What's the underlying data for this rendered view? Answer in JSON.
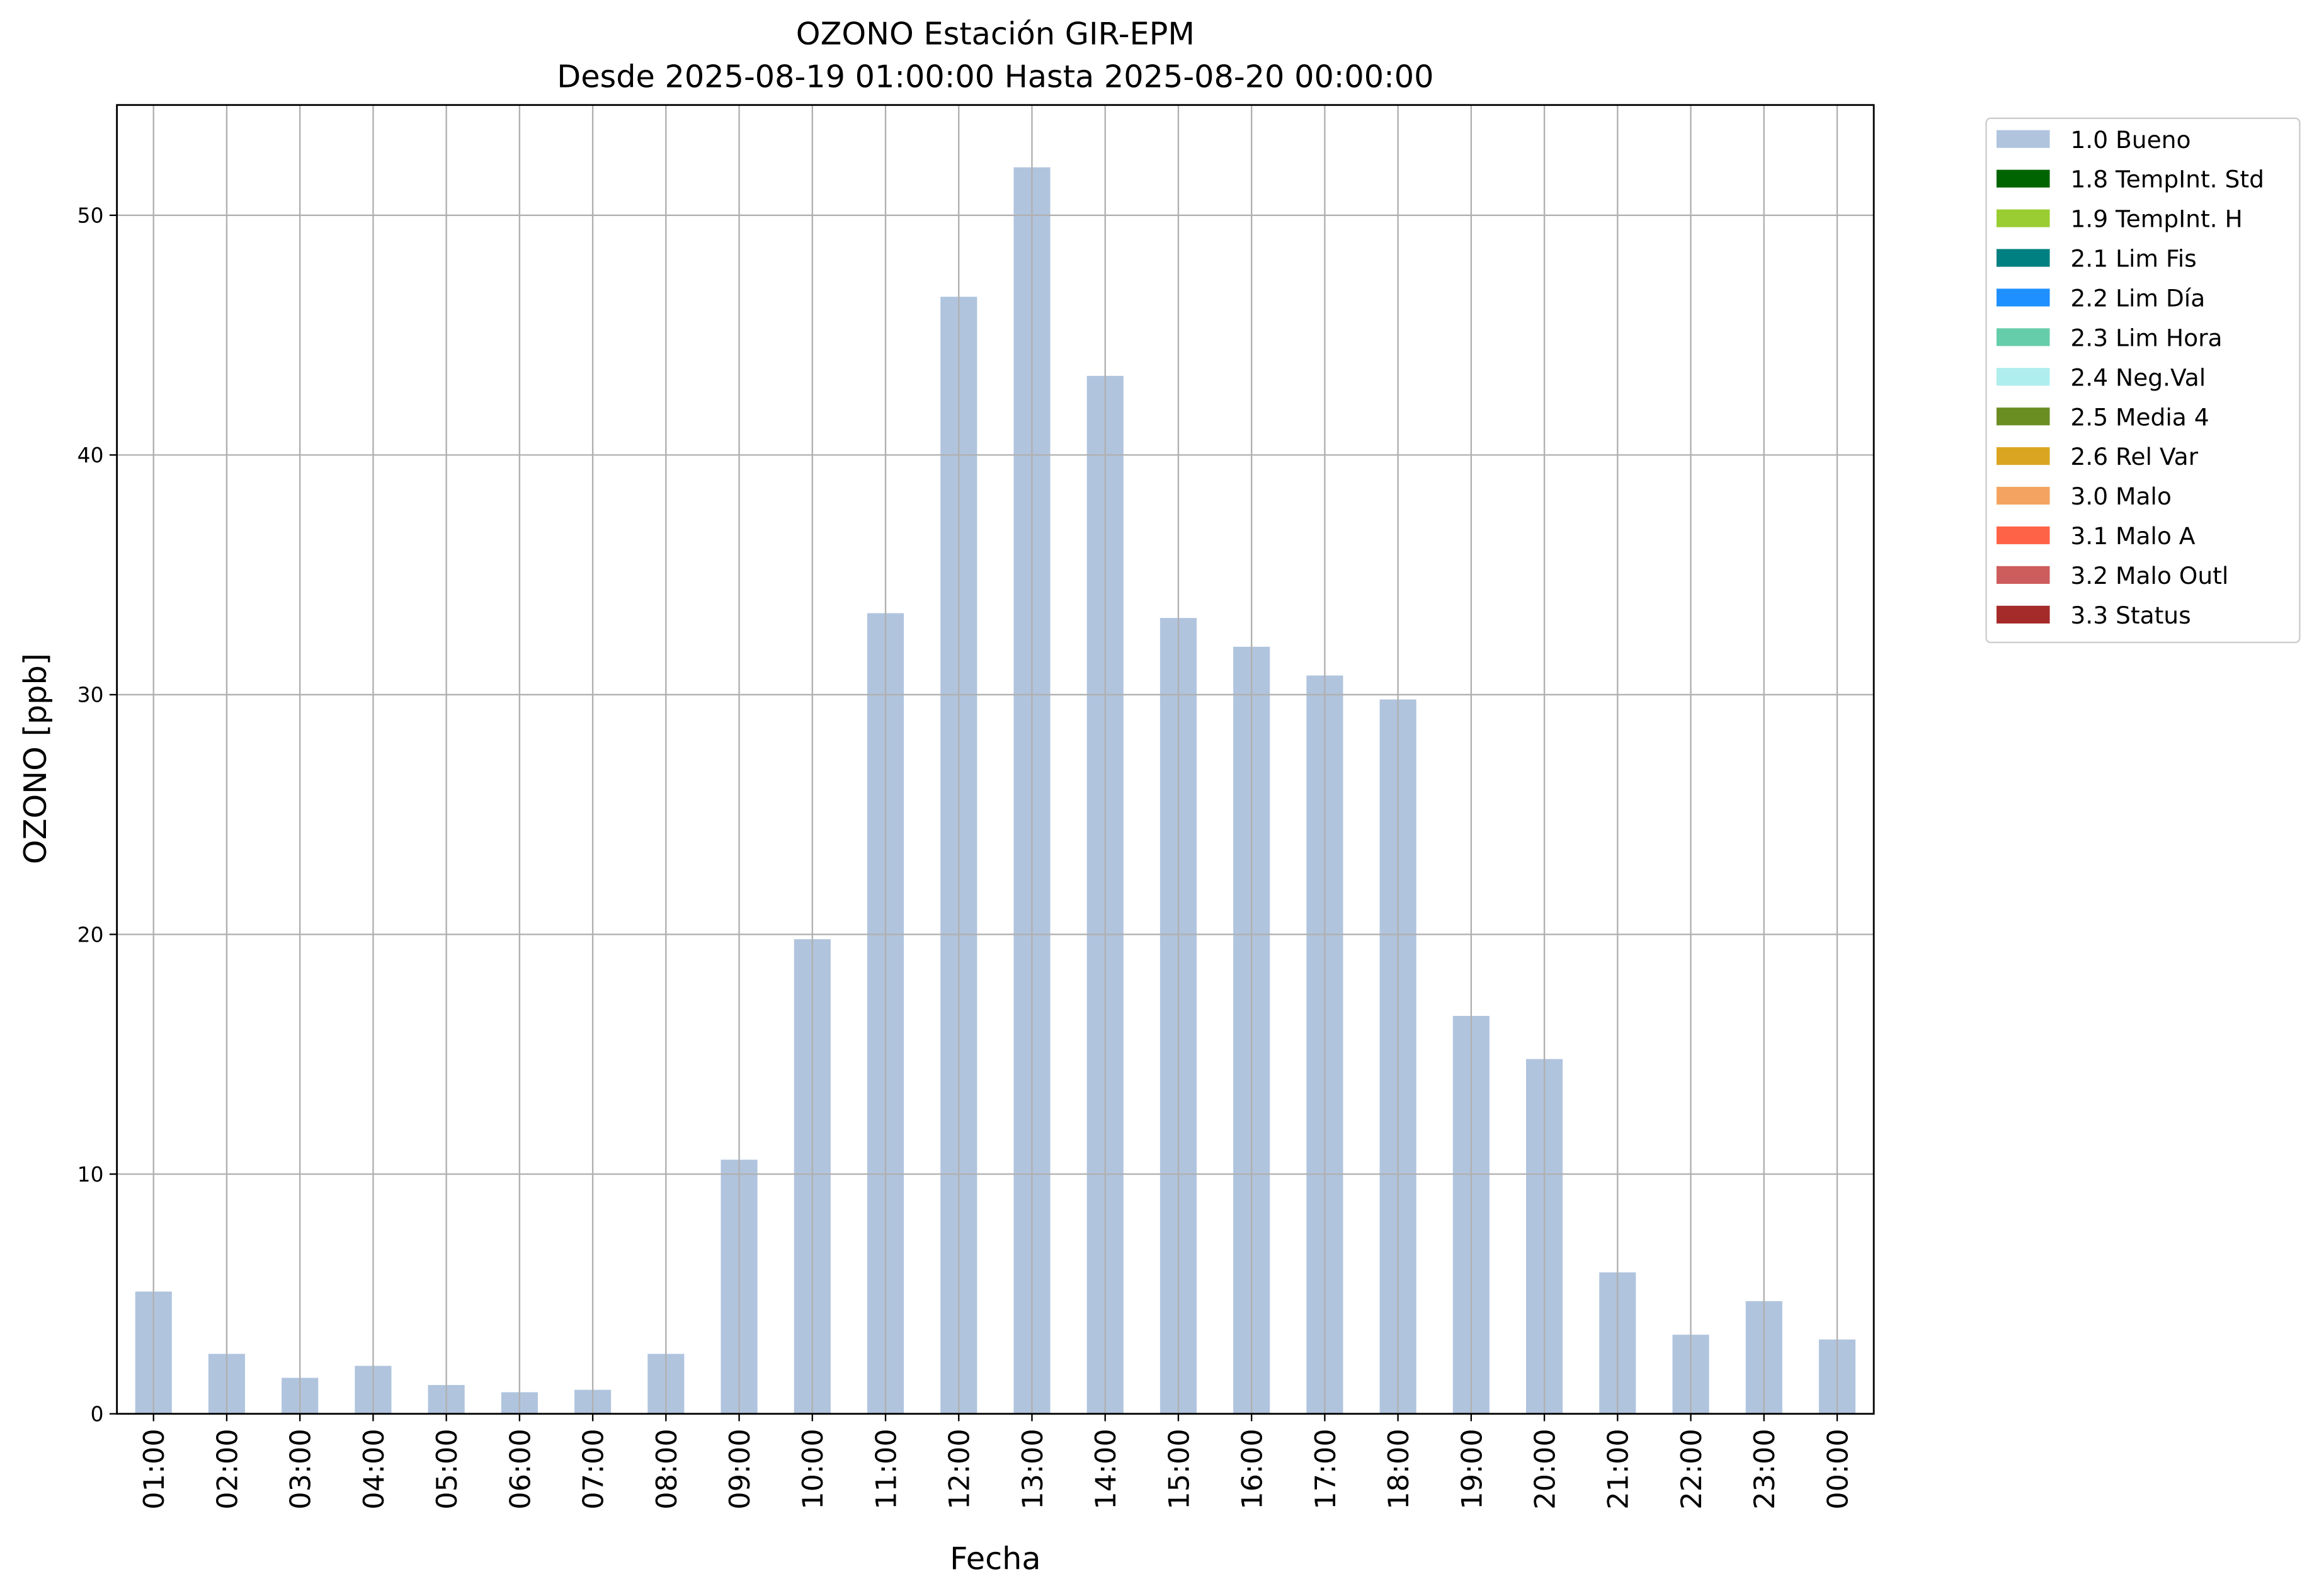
{
  "chart_data": {
    "type": "bar",
    "title": "OZONO Estación GIR-EPM",
    "subtitle": "Desde 2025-08-19 01:00:00 Hasta 2025-08-20 00:00:00",
    "x_label": "Fecha",
    "y_label": "OZONO [ppb]",
    "categories": [
      "01:00",
      "02:00",
      "03:00",
      "04:00",
      "05:00",
      "06:00",
      "07:00",
      "08:00",
      "09:00",
      "10:00",
      "11:00",
      "12:00",
      "13:00",
      "14:00",
      "15:00",
      "16:00",
      "17:00",
      "18:00",
      "19:00",
      "20:00",
      "21:00",
      "22:00",
      "23:00",
      "00:00"
    ],
    "series": [
      {
        "name": "1.0 Bueno",
        "color": "#b0c4de",
        "values": [
          5.1,
          2.5,
          1.5,
          2.0,
          1.2,
          0.9,
          1.0,
          2.5,
          10.6,
          19.8,
          33.4,
          46.6,
          52.0,
          43.3,
          33.2,
          32.0,
          30.8,
          29.8,
          16.6,
          14.8,
          5.9,
          3.3,
          4.7,
          3.1
        ]
      },
      {
        "name": "1.8 TempInt. Std",
        "color": "#006400"
      },
      {
        "name": "1.9 TempInt. H",
        "color": "#9acd32"
      },
      {
        "name": "2.1 Lim Fis",
        "color": "#008080"
      },
      {
        "name": "2.2 Lim Día",
        "color": "#1e90ff"
      },
      {
        "name": "2.3 Lim Hora",
        "color": "#66cdaa"
      },
      {
        "name": "2.4 Neg.Val",
        "color": "#afeeee"
      },
      {
        "name": "2.5 Media 4",
        "color": "#6b8e23"
      },
      {
        "name": "2.6 Rel Var",
        "color": "#daa520"
      },
      {
        "name": "3.0 Malo",
        "color": "#f4a460"
      },
      {
        "name": "3.1 Malo A",
        "color": "#ff6347"
      },
      {
        "name": "3.2 Malo Outl",
        "color": "#cd5c5c"
      },
      {
        "name": "3.3 Status",
        "color": "#a52a2a"
      }
    ],
    "ylim": [
      0,
      54.6
    ],
    "yticks": [
      0,
      10,
      20,
      30,
      40,
      50
    ],
    "grid": true,
    "legend": "outside upper right"
  }
}
